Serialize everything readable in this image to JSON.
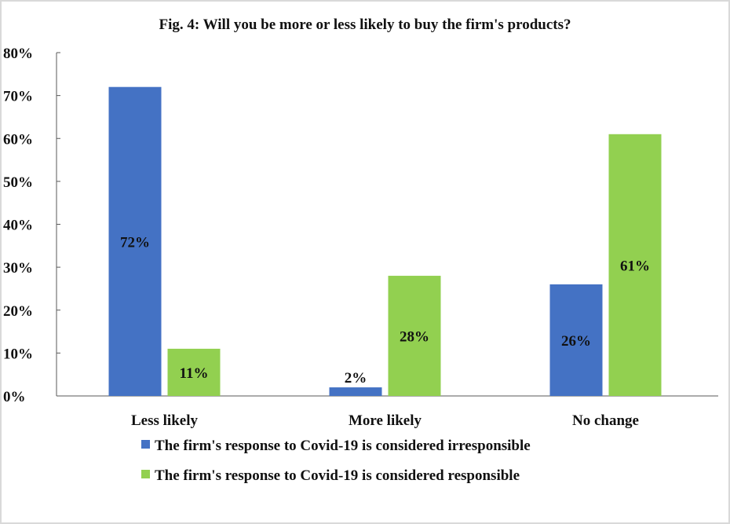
{
  "chart_data": {
    "type": "bar",
    "title": "Fig. 4: Will you be more or less likely to buy the firm's products?",
    "xlabel": "",
    "ylabel": "",
    "ylim": [
      0,
      80
    ],
    "yticks": [
      "0%",
      "10%",
      "20%",
      "30%",
      "40%",
      "50%",
      "60%",
      "70%",
      "80%"
    ],
    "categories": [
      "Less likely",
      "More likely",
      "No change"
    ],
    "series": [
      {
        "name": "The firm's response to Covid-19 is considered irresponsible",
        "color": "#4472c4",
        "values": [
          72,
          2,
          26
        ],
        "labels": [
          "72%",
          "2%",
          "26%"
        ]
      },
      {
        "name": "The firm's response to Covid-19 is considered responsible",
        "color": "#92d050",
        "values": [
          11,
          28,
          61
        ],
        "labels": [
          "11%",
          "28%",
          "61%"
        ]
      }
    ],
    "legend_position": "bottom",
    "grid": false
  }
}
